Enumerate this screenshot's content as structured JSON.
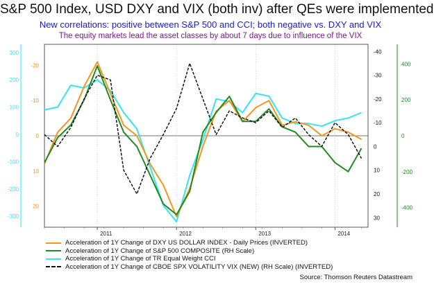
{
  "title": "S&P 500 Index, USD DXY and VIX (both inv) after QEs were implemented",
  "subtitle": "New correlations: positive between S&P 500 and CCI;  both negative vs. DXY and VIX",
  "subtitle2": "The equity markets lead the asset classes by about 7 days due to influence of the VIX",
  "source": "Source: Thomson Reuters Datastream",
  "colors": {
    "dxy": "#f7941d",
    "spx": "#1f8a1f",
    "cci": "#33e5f2",
    "vix": "#111111"
  },
  "chart_data": {
    "type": "line",
    "x_range": [
      "2010-05",
      "2014-06"
    ],
    "x_ticks": [
      "2011",
      "2012",
      "2013",
      "2014"
    ],
    "axes": {
      "left_outer": {
        "ticks": [
          "300",
          "200",
          "100",
          "0",
          "-100",
          "-200",
          "-300"
        ],
        "range": [
          -340,
          330
        ],
        "color": "#33e5f2"
      },
      "left_inner": {
        "ticks": [
          "-20",
          "-10",
          "0",
          "10",
          "20"
        ],
        "range": [
          -26,
          26
        ],
        "inverted": true,
        "color": "#f7941d"
      },
      "right_inner": {
        "ticks": [
          "-40",
          "-30",
          "-20",
          "-10",
          "0",
          "10",
          "20",
          "30"
        ],
        "range": [
          -43,
          34
        ],
        "inverted": true,
        "color": "#111111"
      },
      "right_outer": {
        "ticks": [
          "400",
          "200",
          "0",
          "-200",
          "-400"
        ],
        "range": [
          -510,
          510
        ],
        "color": "#1f8a1f"
      }
    },
    "series": [
      {
        "name": "Acceleration of 1Y Change of DXY US DOLLAR INDEX - Daily Prices (INVERTED)",
        "key": "dxy",
        "axis": "left_inner",
        "x": [
          "2010-05",
          "2010-07",
          "2010-09",
          "2010-11",
          "2011-01",
          "2011-03",
          "2011-05",
          "2011-07",
          "2011-09",
          "2011-11",
          "2012-01",
          "2012-03",
          "2012-05",
          "2012-07",
          "2012-09",
          "2012-11",
          "2013-01",
          "2013-03",
          "2013-05",
          "2013-07",
          "2013-09",
          "2013-11",
          "2014-01",
          "2014-03",
          "2014-05"
        ],
        "y": [
          8,
          -1,
          -5,
          -14,
          -21,
          -12,
          -3,
          0,
          8,
          14,
          23,
          15,
          3,
          -7,
          -10,
          -4,
          -8,
          -10,
          -3,
          -4,
          -3,
          0,
          -2,
          -1,
          1
        ]
      },
      {
        "name": "Acceleration of 1Y Change of S&P 500 COMPOSITE (RH Scale)",
        "key": "spx",
        "axis": "right_outer",
        "x": [
          "2010-05",
          "2010-07",
          "2010-09",
          "2010-11",
          "2011-01",
          "2011-03",
          "2011-05",
          "2011-07",
          "2011-09",
          "2011-11",
          "2012-01",
          "2012-03",
          "2012-05",
          "2012-07",
          "2012-09",
          "2012-11",
          "2013-01",
          "2013-03",
          "2013-05",
          "2013-07",
          "2013-09",
          "2013-11",
          "2014-01",
          "2014-03",
          "2014-05"
        ],
        "y": [
          -150,
          -10,
          60,
          200,
          390,
          200,
          20,
          -60,
          -220,
          -380,
          -440,
          -310,
          20,
          130,
          220,
          80,
          80,
          150,
          50,
          20,
          -60,
          -60,
          -150,
          -200,
          -70
        ]
      },
      {
        "name": "Acceleration of 1Y Change of TR Equal Weight CCI",
        "key": "cci",
        "axis": "left_outer",
        "x": [
          "2010-05",
          "2010-07",
          "2010-09",
          "2010-11",
          "2011-01",
          "2011-03",
          "2011-05",
          "2011-07",
          "2011-09",
          "2011-11",
          "2012-01",
          "2012-03",
          "2012-05",
          "2012-07",
          "2012-09",
          "2012-11",
          "2013-01",
          "2013-03",
          "2013-05",
          "2013-07",
          "2013-09",
          "2013-11",
          "2014-01",
          "2014-03",
          "2014-05"
        ],
        "y": [
          90,
          100,
          180,
          170,
          200,
          160,
          80,
          20,
          -120,
          -260,
          -320,
          -150,
          -20,
          130,
          120,
          80,
          150,
          140,
          60,
          40,
          40,
          30,
          50,
          60,
          80
        ]
      },
      {
        "name": "Acceleration of 1Y Change of CBOE SPX VOLATILITY VIX (NEW) (RH Scale) (INVERTED)",
        "key": "vix",
        "axis": "right_inner",
        "x": [
          "2010-05",
          "2010-07",
          "2010-09",
          "2010-11",
          "2011-01",
          "2011-03",
          "2011-05",
          "2011-07",
          "2011-09",
          "2011-11",
          "2012-01",
          "2012-03",
          "2012-05",
          "2012-07",
          "2012-09",
          "2012-11",
          "2013-01",
          "2013-03",
          "2013-05",
          "2013-07",
          "2013-09",
          "2013-11",
          "2014-01",
          "2014-03",
          "2014-05"
        ],
        "y": [
          -5,
          0,
          -8,
          -20,
          -30,
          -28,
          10,
          20,
          5,
          -5,
          -16,
          -35,
          -20,
          -5,
          -15,
          -12,
          -10,
          -15,
          -8,
          -12,
          -5,
          0,
          -10,
          -5,
          5
        ]
      }
    ]
  }
}
